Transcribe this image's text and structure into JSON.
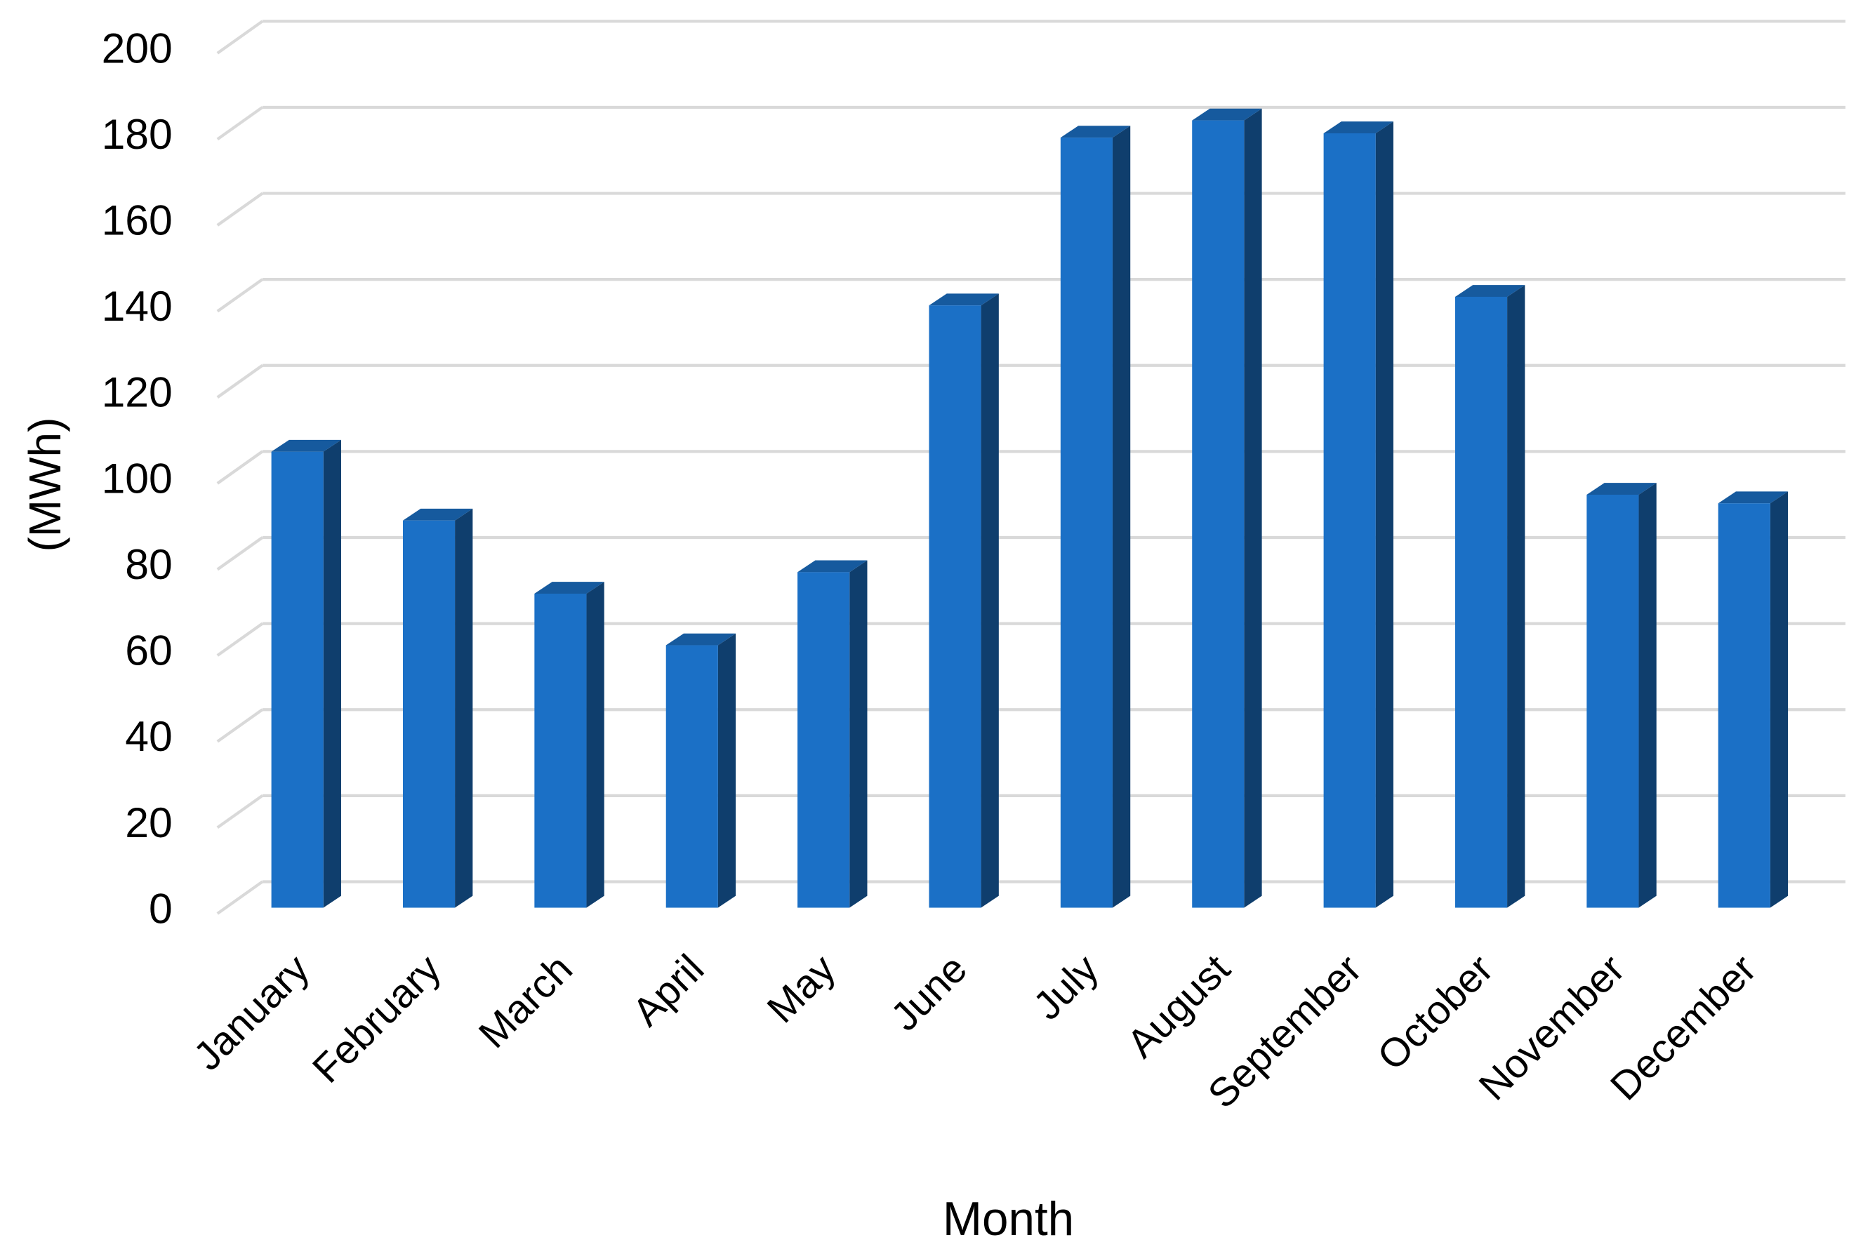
{
  "chart_data": {
    "type": "bar3d",
    "x_label": "Month",
    "y_label": "(MWh)",
    "categories": [
      "January",
      "February",
      "March",
      "April",
      "May",
      "June",
      "July",
      "August",
      "September",
      "October",
      "November",
      "December"
    ],
    "values": [
      106,
      90,
      73,
      61,
      78,
      140,
      179,
      183,
      180,
      142,
      96,
      94
    ],
    "color": "#1b70c6",
    "ylim": [
      0,
      200
    ],
    "yticks": [
      0,
      20,
      40,
      60,
      80,
      100,
      120,
      140,
      160,
      180,
      200
    ],
    "grid": true
  }
}
